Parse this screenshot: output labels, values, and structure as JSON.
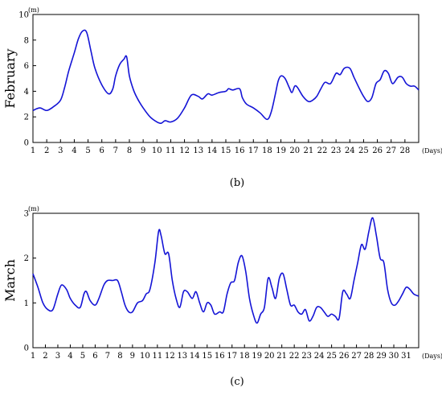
{
  "chart_data": [
    {
      "type": "line",
      "ylabel": "February",
      "yunit": "(m)",
      "xunit": "(Days)",
      "caption": "(b)",
      "xlim": [
        1,
        29
      ],
      "ylim": [
        0,
        10
      ],
      "xticks": [
        1,
        2,
        3,
        4,
        5,
        6,
        7,
        8,
        9,
        10,
        11,
        12,
        13,
        14,
        15,
        16,
        17,
        18,
        19,
        20,
        21,
        22,
        23,
        24,
        25,
        26,
        27,
        28
      ],
      "yticks": [
        0,
        2,
        4,
        6,
        8,
        10
      ],
      "color": "#1414d6",
      "series": [
        {
          "x": [
            1,
            1.5,
            2,
            2.5,
            3,
            3.3,
            3.6,
            4,
            4.3,
            4.6,
            4.9,
            5.2,
            5.5,
            6,
            6.5,
            6.8,
            7,
            7.3,
            7.6,
            7.8,
            8.0,
            8.3,
            8.6,
            9,
            9.5,
            10,
            10.3,
            10.6,
            11,
            11.5,
            12,
            12.5,
            13,
            13.3,
            13.7,
            14,
            14.5,
            15,
            15.2,
            15.5,
            16,
            16.2,
            16.5,
            17,
            17.5,
            18,
            18.3,
            18.6,
            18.8,
            19,
            19.3,
            19.6,
            19.8,
            20,
            20.2,
            20.6,
            21,
            21.3,
            21.6,
            21.9,
            22.2,
            22.6,
            23,
            23.3,
            23.6,
            24,
            24.3,
            24.7,
            25,
            25.3,
            25.6,
            25.9,
            26.2,
            26.5,
            26.8,
            27.1,
            27.5,
            27.8,
            28.1,
            28.4,
            28.7,
            29
          ],
          "y": [
            2.5,
            2.7,
            2.5,
            2.8,
            3.3,
            4.3,
            5.6,
            7.0,
            8.1,
            8.7,
            8.6,
            7.2,
            5.8,
            4.5,
            3.8,
            4.2,
            5.2,
            6.1,
            6.5,
            6.7,
            5.2,
            4.1,
            3.4,
            2.7,
            2.0,
            1.6,
            1.5,
            1.7,
            1.6,
            1.9,
            2.7,
            3.7,
            3.6,
            3.4,
            3.8,
            3.7,
            3.9,
            4.0,
            4.2,
            4.1,
            4.2,
            3.5,
            3.0,
            2.7,
            2.3,
            1.8,
            2.4,
            3.8,
            4.8,
            5.2,
            5.0,
            4.3,
            3.9,
            4.4,
            4.3,
            3.6,
            3.2,
            3.3,
            3.6,
            4.2,
            4.7,
            4.6,
            5.4,
            5.3,
            5.8,
            5.8,
            5.1,
            4.2,
            3.6,
            3.2,
            3.5,
            4.6,
            4.9,
            5.6,
            5.4,
            4.6,
            5.1,
            5.1,
            4.6,
            4.4,
            4.4,
            4.1
          ]
        }
      ]
    },
    {
      "type": "line",
      "ylabel": "March",
      "yunit": "(m)",
      "xunit": "(Days)",
      "caption": "(c)",
      "xlim": [
        1,
        32
      ],
      "ylim": [
        0,
        3
      ],
      "xticks": [
        1,
        2,
        3,
        4,
        5,
        6,
        7,
        8,
        9,
        10,
        11,
        12,
        13,
        14,
        15,
        16,
        17,
        18,
        19,
        20,
        21,
        22,
        23,
        24,
        25,
        26,
        27,
        28,
        29,
        30,
        31
      ],
      "yticks": [
        0,
        1,
        2,
        3
      ],
      "color": "#1414d6",
      "series": [
        {
          "x": [
            1,
            1.4,
            1.8,
            2.2,
            2.6,
            3,
            3.3,
            3.7,
            4,
            4.4,
            4.8,
            5.1,
            5.3,
            5.6,
            6,
            6.3,
            6.7,
            7,
            7.4,
            7.8,
            8.1,
            8.4,
            8.7,
            9,
            9.4,
            9.8,
            10.1,
            10.4,
            10.8,
            11.1,
            11.3,
            11.6,
            11.9,
            12.2,
            12.5,
            12.8,
            13.1,
            13.4,
            13.8,
            14.1,
            14.4,
            14.7,
            15,
            15.3,
            15.6,
            16,
            16.3,
            16.6,
            16.9,
            17.2,
            17.5,
            17.8,
            18.1,
            18.4,
            18.7,
            19,
            19.3,
            19.6,
            19.9,
            20.2,
            20.5,
            20.8,
            21.1,
            21.4,
            21.7,
            22,
            22.3,
            22.6,
            22.9,
            23.2,
            23.5,
            23.8,
            24.1,
            24.4,
            24.7,
            25,
            25.3,
            25.6,
            25.9,
            26.2,
            26.5,
            26.8,
            27.1,
            27.4,
            27.7,
            28,
            28.3,
            28.6,
            28.9,
            29.2,
            29.5,
            29.8,
            30.1,
            30.4,
            30.7,
            31,
            31.3,
            31.6,
            32
          ],
          "y": [
            1.65,
            1.35,
            1.0,
            0.85,
            0.85,
            1.2,
            1.4,
            1.3,
            1.1,
            0.95,
            0.9,
            1.2,
            1.25,
            1.05,
            0.95,
            1.1,
            1.4,
            1.5,
            1.5,
            1.5,
            1.25,
            0.95,
            0.8,
            0.8,
            1.0,
            1.05,
            1.2,
            1.3,
            1.9,
            2.6,
            2.5,
            2.1,
            2.1,
            1.5,
            1.1,
            0.9,
            1.25,
            1.25,
            1.1,
            1.25,
            1.0,
            0.8,
            1.0,
            0.95,
            0.75,
            0.8,
            0.8,
            1.2,
            1.45,
            1.5,
            1.9,
            2.05,
            1.7,
            1.1,
            0.75,
            0.55,
            0.75,
            0.9,
            1.55,
            1.35,
            1.1,
            1.55,
            1.65,
            1.3,
            0.95,
            0.95,
            0.8,
            0.75,
            0.85,
            0.6,
            0.7,
            0.9,
            0.9,
            0.8,
            0.7,
            0.75,
            0.7,
            0.65,
            1.25,
            1.2,
            1.1,
            1.5,
            1.9,
            2.3,
            2.2,
            2.6,
            2.9,
            2.5,
            2.0,
            1.9,
            1.3,
            1.0,
            0.95,
            1.05,
            1.2,
            1.35,
            1.3,
            1.2,
            1.15
          ]
        }
      ]
    }
  ]
}
